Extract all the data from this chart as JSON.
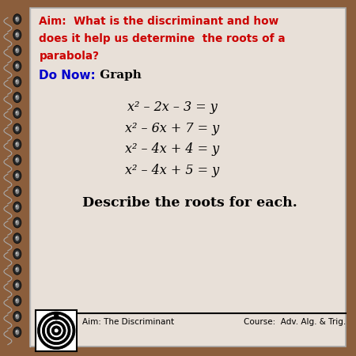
{
  "aim_lines": [
    "Aim:  What is the discriminant and how",
    "does it help us determine  the roots of a",
    "parabola?"
  ],
  "donow_label": "Do Now:",
  "donow_text": " Graph",
  "equations": [
    "x² – 2x – 3 = y",
    "x² – 6x + 7 = y",
    "x² – 4x + 4 = y",
    "x² – 4x + 5 = y"
  ],
  "describe_text": "Describe the roots for each.",
  "footer_left": "Aim: The Discriminant",
  "footer_right": "Course:  Adv. Alg. & Trig.",
  "spine_color": "#8B5E3C",
  "paper_color": "#e8e0d8",
  "aim_color": "#cc0000",
  "donow_color": "#0000cc",
  "text_color": "#000000"
}
